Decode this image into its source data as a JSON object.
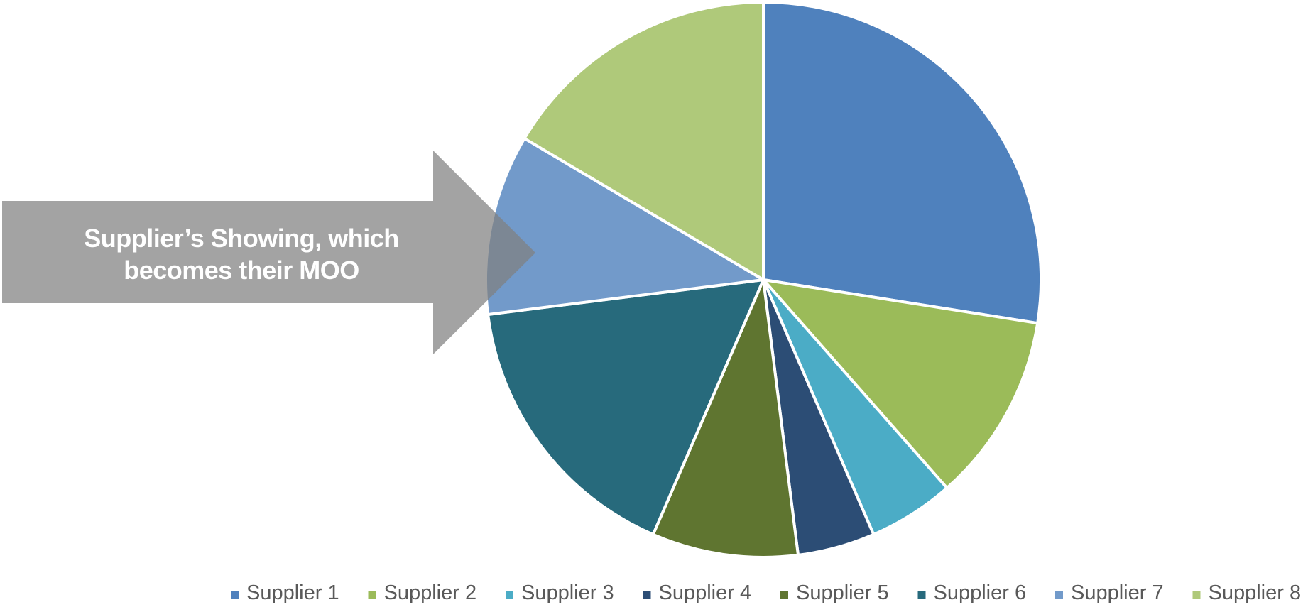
{
  "callout": {
    "line1": "Supplier’s Showing, which",
    "line2": "becomes their MOO",
    "color": "#808080",
    "text_color": "#ffffff"
  },
  "chart_data": {
    "type": "pie",
    "title": "",
    "start_angle_deg": 0,
    "direction": "clockwise",
    "legend_position": "bottom",
    "slices": [
      {
        "label": "Supplier 1",
        "value": 27.5,
        "color": "#4F81BD"
      },
      {
        "label": "Supplier 2",
        "value": 11.0,
        "color": "#9BBB59"
      },
      {
        "label": "Supplier 3",
        "value": 5.0,
        "color": "#4BACC6"
      },
      {
        "label": "Supplier 4",
        "value": 4.5,
        "color": "#2C4D75"
      },
      {
        "label": "Supplier 5",
        "value": 8.5,
        "color": "#5F7530"
      },
      {
        "label": "Supplier 6",
        "value": 16.5,
        "color": "#276A7C"
      },
      {
        "label": "Supplier 7",
        "value": 10.5,
        "color": "#729ACA"
      },
      {
        "label": "Supplier 8",
        "value": 16.5,
        "color": "#AFC97A"
      }
    ]
  }
}
